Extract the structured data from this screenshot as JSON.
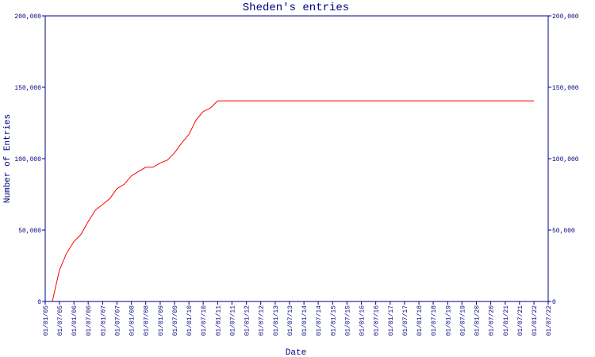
{
  "chart_data": {
    "type": "line",
    "title": "Sheden's entries",
    "y_label": "Number of Entries",
    "x_label": "Date",
    "x": [
      "01/04/05",
      "01/07/05",
      "01/10/05",
      "01/01/06",
      "01/04/06",
      "01/07/06",
      "01/10/06",
      "01/01/07",
      "01/04/07",
      "01/07/07",
      "01/10/07",
      "01/01/08",
      "01/04/08",
      "01/07/08",
      "01/10/08",
      "01/01/09",
      "01/04/09",
      "01/07/09",
      "01/10/09",
      "01/01/10",
      "01/04/10",
      "01/07/10",
      "01/10/10",
      "01/01/11",
      "01/01/22"
    ],
    "values": [
      0,
      22000,
      34000,
      42000,
      47000,
      56000,
      64000,
      68000,
      72000,
      79000,
      82000,
      88000,
      91000,
      94000,
      94000,
      97000,
      99000,
      104000,
      111000,
      117000,
      127000,
      133000,
      135500,
      140500,
      140500
    ],
    "color": "#ff0000",
    "xlim": [
      "01/01/05",
      "01/07/22"
    ],
    "xticks": [
      "01/01/05",
      "01/07/05",
      "01/01/06",
      "01/07/06",
      "01/01/07",
      "01/07/07",
      "01/01/08",
      "01/07/08",
      "01/01/09",
      "01/07/09",
      "01/01/10",
      "01/07/10",
      "01/01/11",
      "01/07/11",
      "01/01/12",
      "01/07/12",
      "01/01/13",
      "01/07/13",
      "01/01/14",
      "01/07/14",
      "01/01/15",
      "01/07/15",
      "01/01/16",
      "01/07/16",
      "01/01/17",
      "01/07/17",
      "01/01/18",
      "01/07/18",
      "01/01/19",
      "01/07/19",
      "01/01/20",
      "01/07/20",
      "01/01/21",
      "01/07/21",
      "01/01/22",
      "01/07/22"
    ],
    "ylim": [
      0,
      200000
    ],
    "yticks": [
      0,
      {
        "value": 50000,
        "label": "50,000"
      },
      {
        "value": 100000,
        "label": "100,000"
      },
      {
        "value": 150000,
        "label": "150,000"
      },
      {
        "value": 200000,
        "label": "200,000"
      }
    ],
    "y2lim": [
      0,
      200000
    ],
    "y2ticks": [
      0,
      {
        "value": 50000,
        "label": "50,000"
      },
      {
        "value": 100000,
        "label": "100,000"
      },
      {
        "value": 150000,
        "label": "150,000"
      },
      {
        "value": 200000,
        "label": "200,000"
      }
    ],
    "grid": false
  }
}
